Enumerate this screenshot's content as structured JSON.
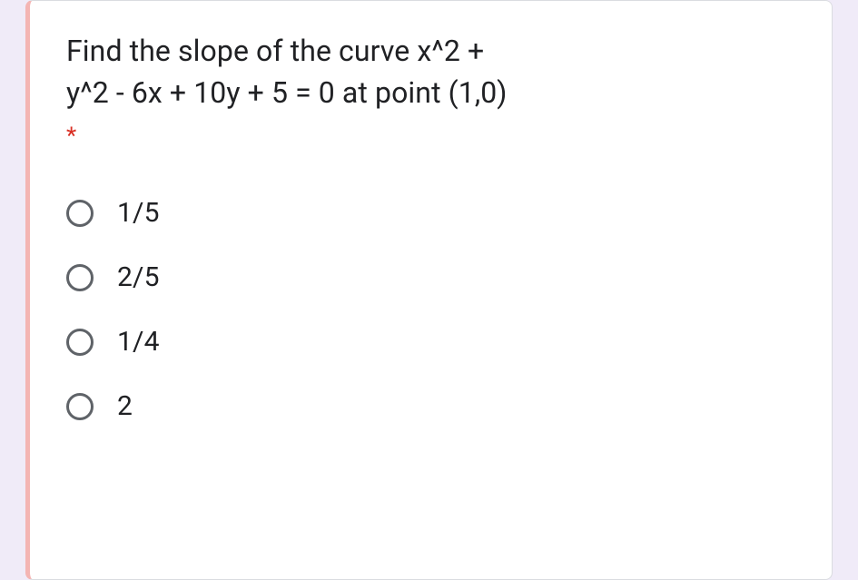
{
  "page": {
    "background_color": "#f0ebf8",
    "card_background": "#ffffff",
    "card_border_color": "#dadce0",
    "card_left_border_color": "#f4b5b3"
  },
  "question": {
    "text_line1": "Find the slope of the curve x^2 +",
    "text_line2": "y^2 - 6x + 10y + 5 = 0 at point (1,0)",
    "required_marker": "*",
    "text_color": "#202124",
    "required_color": "#d93025",
    "font_size_pt": 24
  },
  "options": [
    {
      "label": "1/5",
      "selected": false
    },
    {
      "label": "2/5",
      "selected": false
    },
    {
      "label": "1/4",
      "selected": false
    },
    {
      "label": "2",
      "selected": false
    }
  ],
  "option_style": {
    "radio_border_color": "#5f6368",
    "label_color": "#202124",
    "label_font_size_pt": 22
  }
}
